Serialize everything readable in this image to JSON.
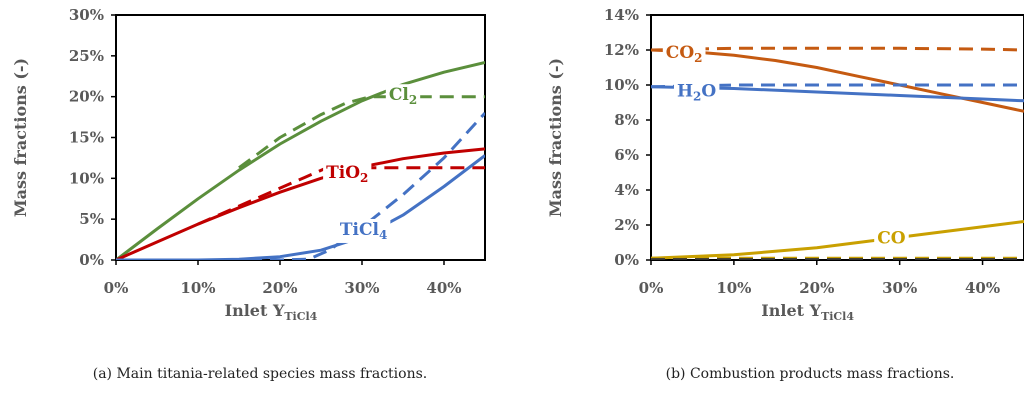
{
  "chart_data": [
    {
      "type": "line",
      "ylabel": "Mass fractions (-)",
      "xlabel": {
        "main": "Inlet Y",
        "sub": "TiCl4"
      },
      "xlim": [
        0,
        0.45
      ],
      "ylim": [
        0,
        0.3
      ],
      "xticks": [
        "0%",
        "10%",
        "20%",
        "30%",
        "40%"
      ],
      "yticks": [
        "0%",
        "5%",
        "10%",
        "15%",
        "20%",
        "25%",
        "30%"
      ],
      "caption": "(a) Main titania-related species mass fractions.",
      "series": [
        {
          "label": {
            "main": "Cl",
            "sub": "2"
          },
          "color": "#5b8f3c",
          "style": "solid",
          "x": [
            0,
            0.05,
            0.1,
            0.15,
            0.2,
            0.25,
            0.3,
            0.35,
            0.4,
            0.45
          ],
          "y": [
            0,
            0.038,
            0.075,
            0.11,
            0.142,
            0.17,
            0.195,
            0.215,
            0.23,
            0.242
          ]
        },
        {
          "label": {
            "main": "Cl",
            "sub": "2"
          },
          "color": "#5b8f3c",
          "style": "dashed",
          "x": [
            0.15,
            0.2,
            0.25,
            0.28,
            0.31,
            0.33,
            0.35,
            0.4,
            0.45
          ],
          "y": [
            0.113,
            0.15,
            0.178,
            0.192,
            0.2,
            0.2,
            0.2,
            0.2,
            0.2
          ]
        },
        {
          "label": {
            "main": "TiO",
            "sub": "2"
          },
          "color": "#c00000",
          "style": "solid",
          "x": [
            0,
            0.05,
            0.1,
            0.15,
            0.2,
            0.25,
            0.3,
            0.35,
            0.4,
            0.45
          ],
          "y": [
            0,
            0.022,
            0.044,
            0.064,
            0.083,
            0.1,
            0.114,
            0.124,
            0.131,
            0.136
          ]
        },
        {
          "label": {
            "main": "TiO",
            "sub": "2"
          },
          "color": "#c00000",
          "style": "dashed",
          "x": [
            0.1,
            0.15,
            0.2,
            0.23,
            0.255,
            0.3,
            0.35,
            0.4,
            0.45
          ],
          "y": [
            0.044,
            0.066,
            0.088,
            0.101,
            0.112,
            0.113,
            0.113,
            0.113,
            0.113
          ]
        },
        {
          "label": {
            "main": "TiCl",
            "sub": "4"
          },
          "color": "#4472c4",
          "style": "solid",
          "x": [
            0,
            0.1,
            0.15,
            0.2,
            0.25,
            0.3,
            0.35,
            0.4,
            0.45
          ],
          "y": [
            0,
            0,
            0.001,
            0.004,
            0.012,
            0.028,
            0.055,
            0.09,
            0.128
          ]
        },
        {
          "label": {
            "main": "TiCl",
            "sub": "4"
          },
          "color": "#4472c4",
          "style": "dashed",
          "x": [
            0,
            0.2,
            0.235,
            0.26,
            0.3,
            0.35,
            0.4,
            0.45
          ],
          "y": [
            0,
            0,
            0.001,
            0.012,
            0.04,
            0.08,
            0.125,
            0.18
          ]
        }
      ],
      "labels": [
        {
          "main": "Cl",
          "sub": "2",
          "color": "#5b8f3c",
          "x": 0.35,
          "y": 0.203
        },
        {
          "main": "TiO",
          "sub": "2",
          "color": "#c00000",
          "x": 0.282,
          "y": 0.108
        },
        {
          "main": "TiCl",
          "sub": "4",
          "color": "#4472c4",
          "x": 0.302,
          "y": 0.038
        }
      ]
    },
    {
      "type": "line",
      "ylabel": "Mass fractions (-)",
      "xlabel": {
        "main": "Inlet Y",
        "sub": "TiCl4"
      },
      "xlim": [
        0,
        0.45
      ],
      "ylim": [
        0,
        0.14
      ],
      "xticks": [
        "0%",
        "10%",
        "20%",
        "30%",
        "40%"
      ],
      "yticks": [
        "0%",
        "2%",
        "4%",
        "6%",
        "8%",
        "10%",
        "12%",
        "14%"
      ],
      "caption": "(b) Combustion products mass fractions.",
      "series": [
        {
          "label": {
            "main": "CO",
            "sub": "2"
          },
          "color": "#c55a11",
          "style": "solid",
          "x": [
            0,
            0.05,
            0.1,
            0.15,
            0.2,
            0.25,
            0.3,
            0.35,
            0.4,
            0.45
          ],
          "y": [
            0.12,
            0.119,
            0.117,
            0.114,
            0.11,
            0.105,
            0.1,
            0.095,
            0.09,
            0.085
          ]
        },
        {
          "label": {
            "main": "CO",
            "sub": "2"
          },
          "color": "#c55a11",
          "style": "dashed",
          "x": [
            0,
            0.05,
            0.1,
            0.2,
            0.3,
            0.4,
            0.45
          ],
          "y": [
            0.12,
            0.1205,
            0.121,
            0.121,
            0.121,
            0.1205,
            0.12
          ]
        },
        {
          "label": {
            "main": "H",
            "sub": "2",
            "tail": "O"
          },
          "color": "#4472c4",
          "style": "solid",
          "x": [
            0,
            0.1,
            0.2,
            0.3,
            0.4,
            0.45
          ],
          "y": [
            0.099,
            0.098,
            0.096,
            0.094,
            0.092,
            0.091
          ]
        },
        {
          "label": {
            "main": "H",
            "sub": "2",
            "tail": "O"
          },
          "color": "#4472c4",
          "style": "dashed",
          "x": [
            0,
            0.1,
            0.2,
            0.3,
            0.4,
            0.45
          ],
          "y": [
            0.099,
            0.1,
            0.1,
            0.1,
            0.1,
            0.1
          ]
        },
        {
          "label": {
            "main": "CO"
          },
          "color": "#c9a000",
          "style": "solid",
          "x": [
            0,
            0.05,
            0.1,
            0.15,
            0.2,
            0.25,
            0.3,
            0.35,
            0.4,
            0.45
          ],
          "y": [
            0.001,
            0.002,
            0.003,
            0.005,
            0.007,
            0.01,
            0.013,
            0.016,
            0.019,
            0.022
          ]
        },
        {
          "label": {
            "main": "CO"
          },
          "color": "#c9a000",
          "style": "dashed",
          "x": [
            0,
            0.1,
            0.2,
            0.3,
            0.4,
            0.45
          ],
          "y": [
            0.001,
            0.001,
            0.001,
            0.001,
            0.001,
            0.001
          ]
        },
        {
          "label": {
            "main": ""
          },
          "color": "#333333",
          "style": "dashed",
          "x": [
            0,
            0.45
          ],
          "y": [
            0.0002,
            0.0002
          ]
        }
      ],
      "labels": [
        {
          "main": "CO",
          "sub": "2",
          "color": "#c55a11",
          "x": 0.04,
          "y": 0.119
        },
        {
          "main": "H",
          "sub": "2",
          "tail": "O",
          "color": "#4472c4",
          "x": 0.055,
          "y": 0.097
        },
        {
          "main": "CO",
          "sub": "",
          "color": "#c9a000",
          "x": 0.29,
          "y": 0.013
        }
      ]
    }
  ]
}
